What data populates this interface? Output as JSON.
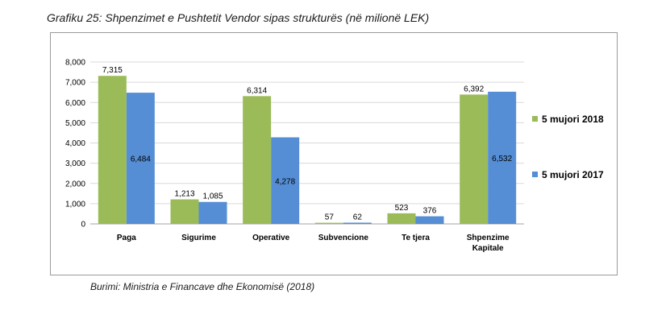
{
  "title": "Grafiku 25: Shpenzimet e Pushtetit Vendor sipas strukturës (në milionë LEK)",
  "source": "Burimi: Ministria e Financave dhe Ekonomisë (2018)",
  "chart_data": {
    "type": "bar",
    "categories": [
      "Paga",
      "Sigurime",
      "Operative",
      "Subvencione",
      "Te tjera",
      "Shpenzime Kapitale"
    ],
    "category_lines": [
      [
        "Paga"
      ],
      [
        "Sigurime"
      ],
      [
        "Operative"
      ],
      [
        "Subvencione"
      ],
      [
        "Te tjera"
      ],
      [
        "Shpenzime",
        "Kapitale"
      ]
    ],
    "series": [
      {
        "name": "5 mujori 2018",
        "color": "#9bbb59",
        "values": [
          7315,
          1213,
          6314,
          57,
          523,
          6392
        ],
        "labels": [
          "7,315",
          "1,213",
          "6,314",
          "57",
          "523",
          "6,392"
        ]
      },
      {
        "name": "5 mujori 2017",
        "color": "#558ed5",
        "values": [
          6484,
          1085,
          4278,
          62,
          376,
          6532
        ],
        "labels": [
          "6,484",
          "1,085",
          "4,278",
          "62",
          "376",
          "6,532"
        ]
      }
    ],
    "y_ticks": [
      "0",
      "1,000",
      "2,000",
      "3,000",
      "4,000",
      "5,000",
      "6,000",
      "7,000",
      "8,000"
    ],
    "ylim": [
      0,
      8000
    ],
    "y_step": 1000,
    "grid": true,
    "legend_position": "right"
  }
}
